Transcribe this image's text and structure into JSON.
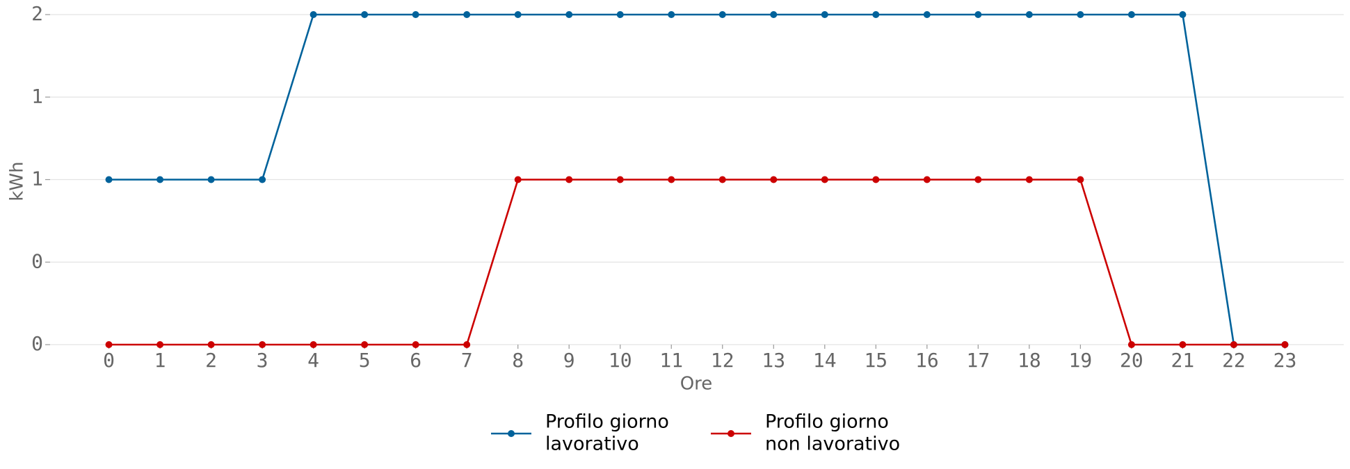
{
  "chart_data": {
    "type": "line",
    "x_label": "Ore",
    "y_label": "kWh",
    "x": [
      0,
      1,
      2,
      3,
      4,
      5,
      6,
      7,
      8,
      9,
      10,
      11,
      12,
      13,
      14,
      15,
      16,
      17,
      18,
      19,
      20,
      21,
      22,
      23
    ],
    "xlim": [
      -1.15,
      24.15
    ],
    "xticks": [
      0,
      1,
      2,
      3,
      4,
      5,
      6,
      7,
      8,
      9,
      10,
      11,
      12,
      13,
      14,
      15,
      16,
      17,
      18,
      19,
      20,
      21,
      22,
      23
    ],
    "ylim": [
      0,
      2
    ],
    "yticks": [
      {
        "value": 0,
        "label": "0"
      },
      {
        "value": 0.5,
        "label": "0"
      },
      {
        "value": 1,
        "label": "1"
      },
      {
        "value": 1.5,
        "label": "1"
      },
      {
        "value": 2,
        "label": "2"
      }
    ],
    "grid": true,
    "legend": "bottom",
    "series": [
      {
        "name": [
          "Profilo giorno",
          "lavorativo"
        ],
        "color": "#00629b",
        "values": [
          1,
          1,
          1,
          1,
          2,
          2,
          2,
          2,
          2,
          2,
          2,
          2,
          2,
          2,
          2,
          2,
          2,
          2,
          2,
          2,
          2,
          2,
          0,
          0
        ]
      },
      {
        "name": [
          "Profilo giorno",
          "non lavorativo"
        ],
        "color": "#cc0000",
        "values": [
          0,
          0,
          0,
          0,
          0,
          0,
          0,
          0,
          1,
          1,
          1,
          1,
          1,
          1,
          1,
          1,
          1,
          1,
          1,
          1,
          0,
          0,
          0,
          0
        ]
      }
    ]
  }
}
